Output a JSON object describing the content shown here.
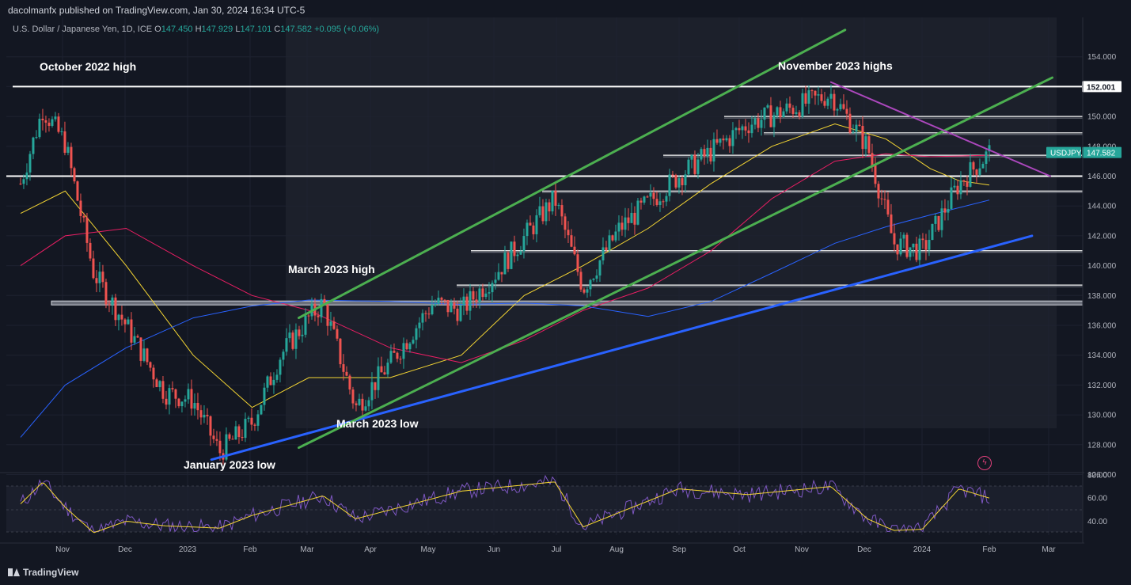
{
  "header": {
    "published": "dacolmanfx published on TradingView.com, Jan 30, 2024 16:34 UTC-5",
    "symbol_desc": "U.S. Dollar / Japanese Yen, 1D, ICE",
    "o_label": "O",
    "o_val": "147.450",
    "h_label": "H",
    "h_val": "147.929",
    "l_label": "L",
    "l_val": "147.101",
    "c_label": "C",
    "c_val": "147.582",
    "change": "+0.095 (+0.06%)"
  },
  "footer": {
    "brand": "TradingView"
  },
  "colors": {
    "background": "#131722",
    "up": "#26a69a",
    "down": "#ef5350",
    "channel": "#4caf50",
    "support": "#2962ff",
    "resistance": "#ab47bc",
    "ma50": "#f5d633",
    "ma100": "#e91e63",
    "ma200": "#2962ff",
    "level": "#ffffff"
  },
  "chart_data": [
    {
      "type": "candlestick",
      "symbol": "USDJPY",
      "last_price": "147.582",
      "marked_level": "152.001",
      "y_ticks": [
        "154.000",
        "152.000",
        "150.000",
        "148.000",
        "146.000",
        "144.000",
        "142.000",
        "140.000",
        "138.000",
        "136.000",
        "134.000",
        "132.000",
        "130.000",
        "128.000",
        "126.000"
      ],
      "ylim": [
        126,
        154
      ],
      "x_ticks": [
        "Nov",
        "Dec",
        "2023",
        "Feb",
        "Mar",
        "Apr",
        "May",
        "Jun",
        "Jul",
        "Aug",
        "Sep",
        "Oct",
        "Nov",
        "Dec",
        "2024",
        "Feb",
        "Mar"
      ],
      "annotations": [
        "October 2022 high",
        "November 2023 highs",
        "March 2023 high",
        "March 2023 low",
        "January 2023 low"
      ],
      "horizontal_levels": [
        152.0,
        150.0,
        148.9,
        147.4,
        146.0,
        145.0,
        141.0,
        138.7,
        137.5
      ],
      "series": [
        {
          "x": [
            "2022-10-10",
            "2022-10-21",
            "2022-11-01",
            "2022-11-15",
            "2022-12-01",
            "2022-12-20",
            "2023-01-03",
            "2023-01-16",
            "2023-02-01",
            "2023-02-15",
            "2023-03-01",
            "2023-03-08",
            "2023-03-24",
            "2023-04-10",
            "2023-05-01",
            "2023-05-15",
            "2023-06-01",
            "2023-06-30",
            "2023-07-14",
            "2023-08-01",
            "2023-08-30",
            "2023-10-03",
            "2023-11-13",
            "2023-12-01",
            "2023-12-14",
            "2023-12-28",
            "2024-01-15",
            "2024-01-30"
          ],
          "values": [
            145.5,
            150.5,
            148.2,
            139.5,
            136.0,
            131.5,
            131.0,
            127.5,
            129.5,
            134.0,
            136.5,
            137.5,
            130.5,
            133.5,
            137.5,
            137.0,
            139.5,
            144.5,
            138.5,
            142.5,
            146.0,
            149.5,
            151.5,
            148.0,
            141.5,
            141.0,
            145.5,
            147.582
          ]
        }
      ],
      "moving_averages": [
        {
          "x": [
            "2022-10-10",
            "2022-11-01",
            "2022-12-01",
            "2023-01-03",
            "2023-02-01",
            "2023-03-01",
            "2023-04-10",
            "2023-05-15",
            "2023-06-15",
            "2023-07-14",
            "2023-08-15",
            "2023-09-15",
            "2023-10-15",
            "2023-11-15",
            "2023-12-10",
            "2024-01-01",
            "2024-01-15",
            "2024-01-30"
          ],
          "values": [
            143.5,
            145.0,
            140.0,
            134.0,
            130.5,
            132.5,
            132.5,
            134.0,
            138.0,
            140.0,
            142.5,
            145.5,
            148.0,
            149.5,
            148.5,
            146.5,
            145.7,
            145.4
          ]
        },
        {
          "x": [
            "2022-10-10",
            "2022-11-01",
            "2022-12-01",
            "2023-01-03",
            "2023-02-01",
            "2023-03-01",
            "2023-04-10",
            "2023-05-15",
            "2023-06-15",
            "2023-07-14",
            "2023-08-15",
            "2023-09-15",
            "2023-10-15",
            "2023-11-15",
            "2023-12-10",
            "2024-01-01",
            "2024-01-30"
          ],
          "values": [
            140.0,
            142.0,
            142.5,
            140.0,
            138.0,
            137.0,
            134.5,
            133.5,
            135.0,
            137.0,
            138.5,
            141.0,
            144.5,
            147.0,
            147.5,
            147.3,
            147.4
          ]
        },
        {
          "x": [
            "2022-10-10",
            "2022-11-01",
            "2022-12-01",
            "2023-01-03",
            "2023-02-01",
            "2023-03-01",
            "2023-04-10",
            "2023-05-15",
            "2023-06-15",
            "2023-07-14",
            "2023-08-15",
            "2023-09-15",
            "2023-10-15",
            "2023-11-15",
            "2023-12-10",
            "2024-01-01",
            "2024-01-30"
          ],
          "values": [
            128.5,
            132.0,
            134.5,
            136.5,
            137.3,
            137.7,
            137.6,
            137.4,
            137.5,
            137.3,
            136.6,
            137.6,
            139.5,
            141.5,
            142.6,
            143.4,
            144.4
          ]
        }
      ],
      "trendlines": [
        {
          "x": [
            "2023-01-12",
            "2024-02-20"
          ],
          "values": [
            127.0,
            142.0
          ]
        },
        {
          "x": [
            "2023-02-24",
            "2023-11-20"
          ],
          "values": [
            136.5,
            155.8
          ]
        },
        {
          "x": [
            "2023-02-24",
            "2024-03-01"
          ],
          "values": [
            127.8,
            152.6
          ]
        },
        {
          "x": [
            "2023-11-13",
            "2024-02-29"
          ],
          "values": [
            152.3,
            146.0
          ]
        }
      ]
    },
    {
      "type": "line",
      "indicator": "RSI",
      "y_ticks": [
        "80.00",
        "60.00",
        "40.00"
      ],
      "ylim": [
        30,
        80
      ],
      "series": [
        {
          "x": [
            "2022-10-10",
            "2022-10-21",
            "2022-11-01",
            "2022-11-15",
            "2022-12-01",
            "2022-12-20",
            "2023-01-16",
            "2023-02-01",
            "2023-03-08",
            "2023-03-24",
            "2023-05-15",
            "2023-06-30",
            "2023-07-14",
            "2023-08-30",
            "2023-10-03",
            "2023-11-13",
            "2023-12-01",
            "2023-12-14",
            "2023-12-28",
            "2024-01-15",
            "2024-01-30"
          ],
          "values": [
            55,
            74,
            52,
            30,
            40,
            36,
            34,
            45,
            62,
            42,
            66,
            74,
            35,
            68,
            63,
            70,
            42,
            32,
            33,
            68,
            60
          ]
        }
      ]
    }
  ]
}
